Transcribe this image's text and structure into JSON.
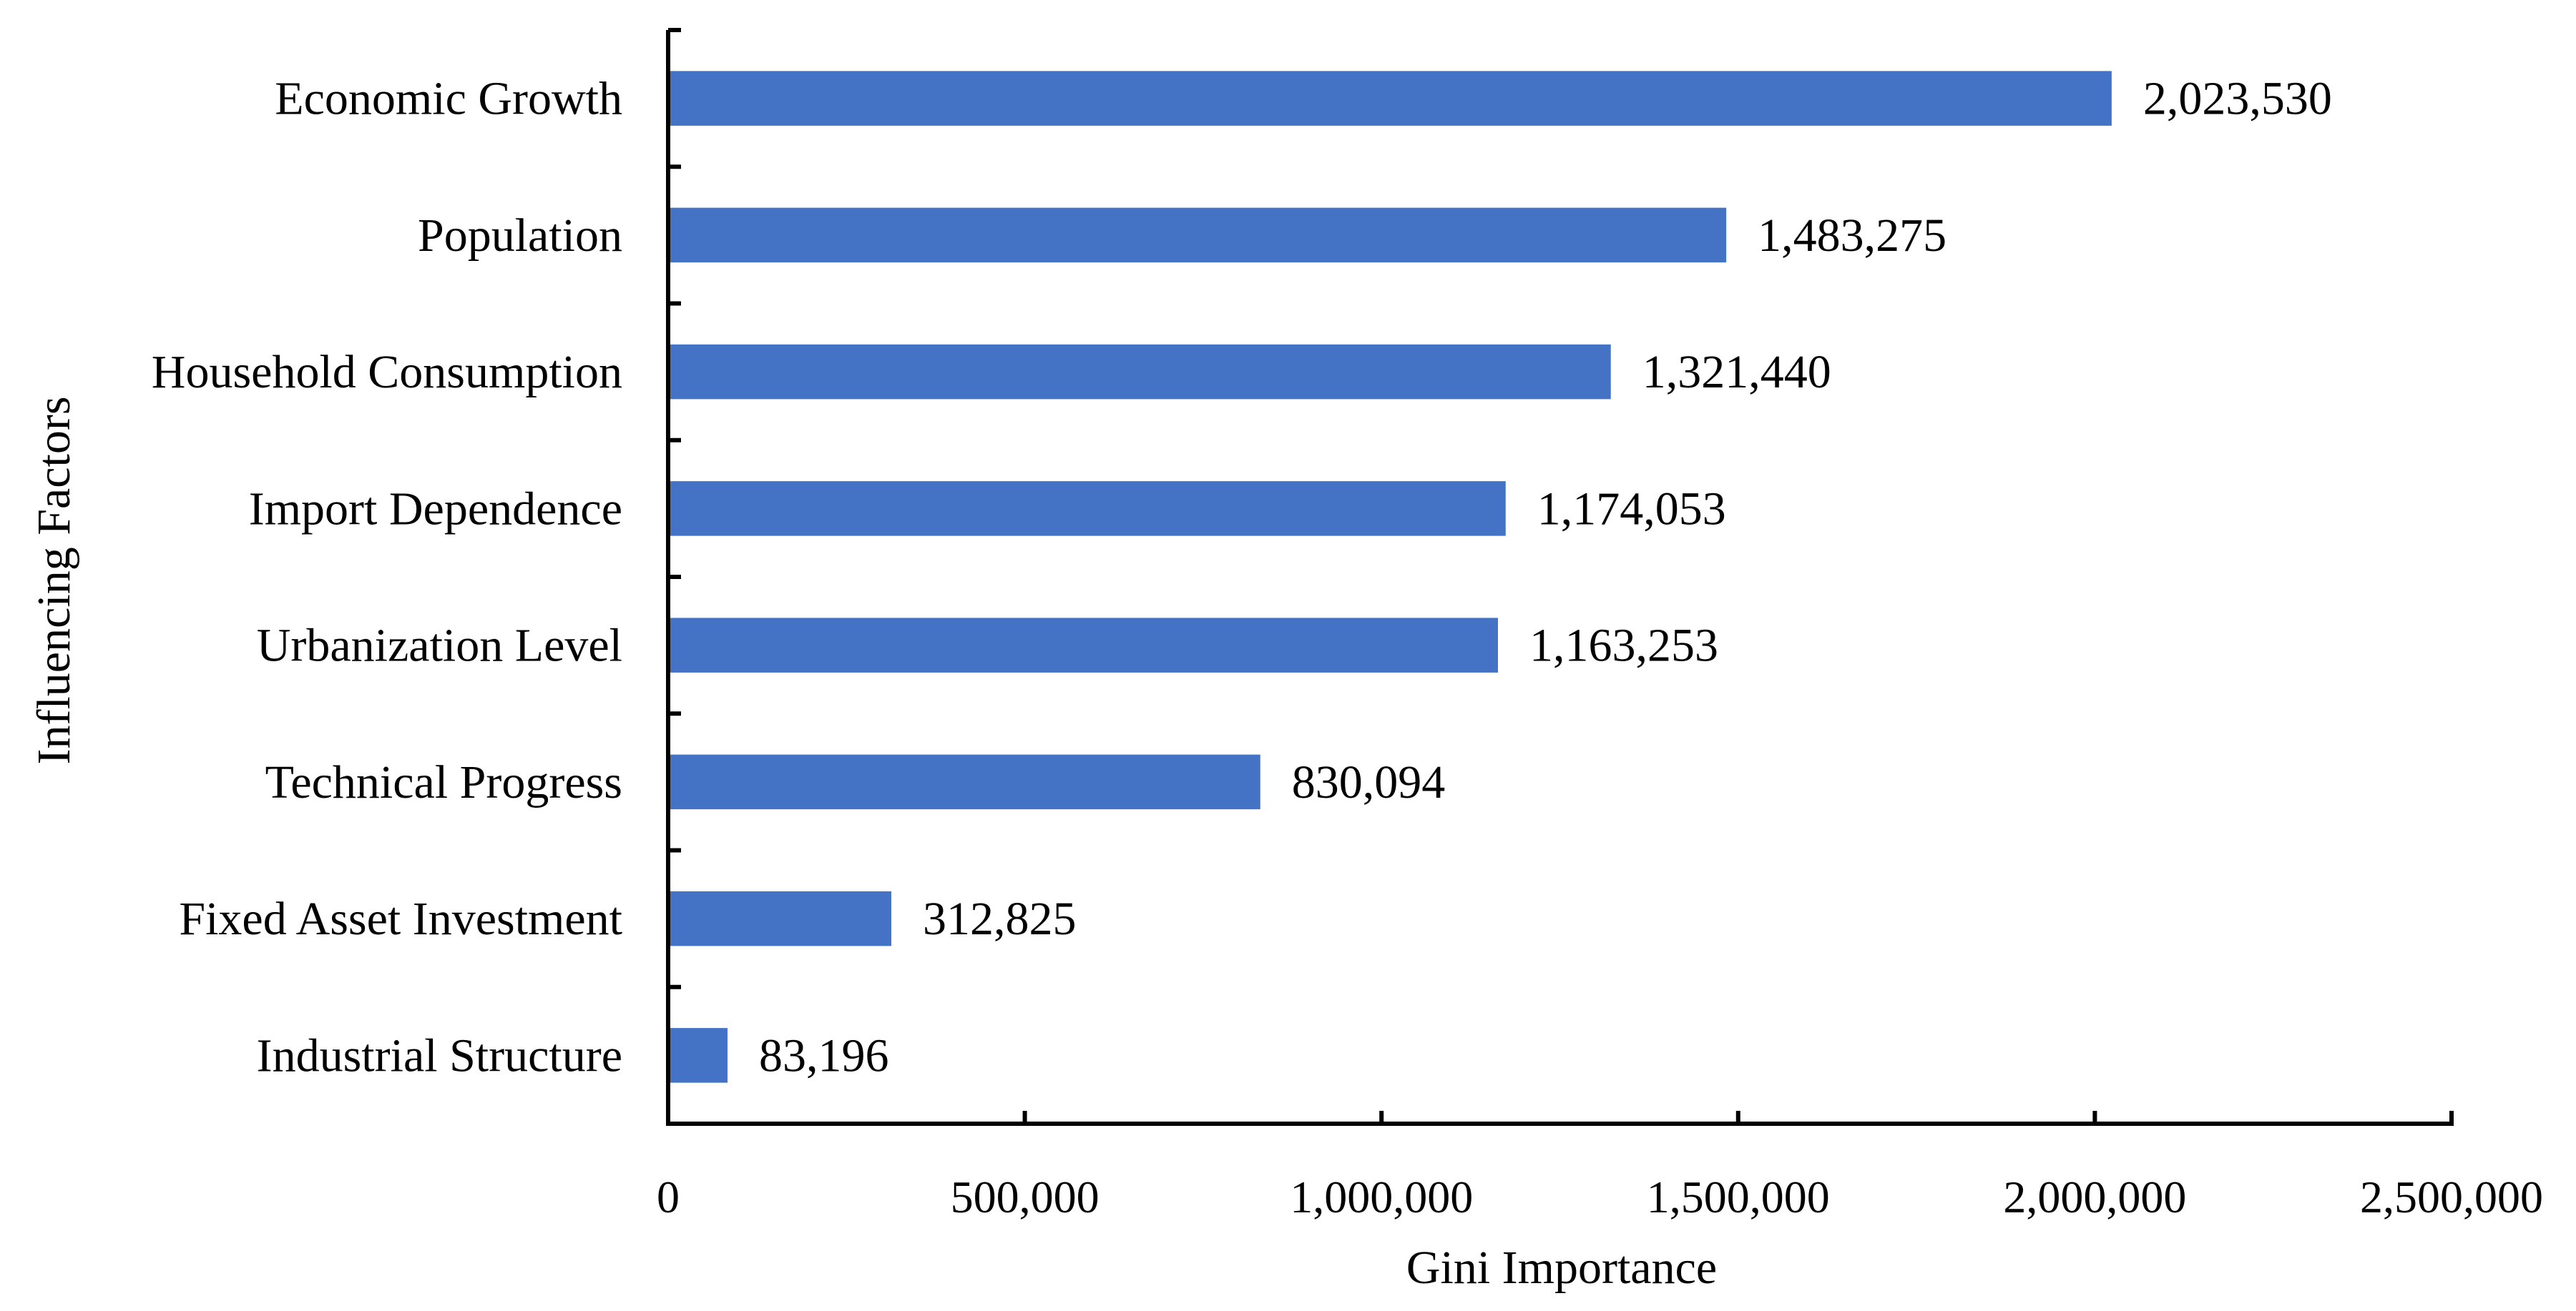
{
  "chart_data": {
    "type": "bar",
    "orientation": "horizontal",
    "title": "",
    "xlabel": "Gini Importance",
    "ylabel": "Influencing Factors",
    "categories": [
      "Economic Growth",
      "Population",
      "Household Consumption",
      "Import Dependence",
      "Urbanization Level",
      "Technical Progress",
      "Fixed Asset Investment",
      "Industrial Structure"
    ],
    "values": [
      2023530,
      1483275,
      1321440,
      1174053,
      1163253,
      830094,
      312825,
      83196
    ],
    "value_labels": [
      "2,023,530",
      "1,483,275",
      "1,321,440",
      "1,174,053",
      "1,163,253",
      "830,094",
      "312,825",
      "83,196"
    ],
    "xlim": [
      0,
      2500000
    ],
    "xticks": [
      0,
      500000,
      1000000,
      1500000,
      2000000,
      2500000
    ],
    "xtick_labels": [
      "0",
      "500,000",
      "1,000,000",
      "1,500,000",
      "2,000,000",
      "2,500,000"
    ],
    "bar_color": "#4472C4",
    "grid": false,
    "legend": "none"
  }
}
